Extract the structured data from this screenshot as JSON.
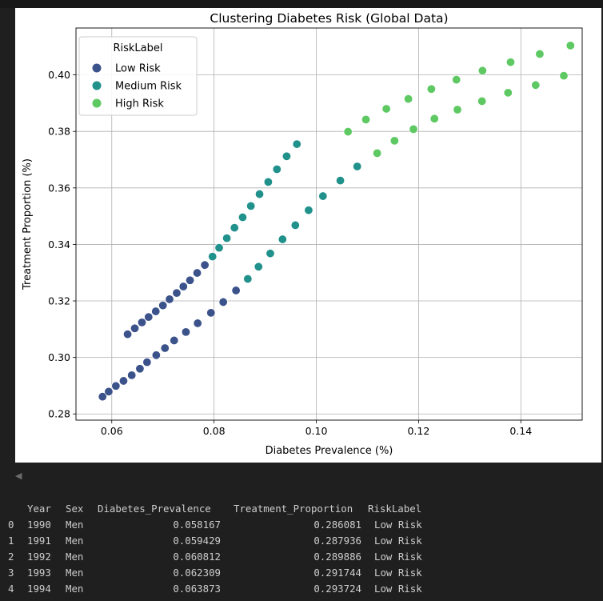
{
  "chart_data": {
    "type": "scatter",
    "title": "Clustering Diabetes Risk (Global Data)",
    "xlabel": "Diabetes Prevalence (%)",
    "ylabel": "Treatment Proportion (%)",
    "xlim": [
      0.053,
      0.152
    ],
    "ylim": [
      0.2778,
      0.4166
    ],
    "xticks": [
      0.06,
      0.08,
      0.1,
      0.12,
      0.14
    ],
    "xtick_labels": [
      "0.06",
      "0.08",
      "0.10",
      "0.12",
      "0.14"
    ],
    "yticks": [
      0.28,
      0.3,
      0.32,
      0.34,
      0.36,
      0.38,
      0.4
    ],
    "ytick_labels": [
      "0.28",
      "0.30",
      "0.32",
      "0.34",
      "0.36",
      "0.38",
      "0.40"
    ],
    "grid": true,
    "legend": {
      "title": "RiskLabel",
      "position": "top-left"
    },
    "series": [
      {
        "name": "Low Risk",
        "color": "#3b528b",
        "points": [
          [
            0.0582,
            0.2861
          ],
          [
            0.0594,
            0.2879
          ],
          [
            0.0608,
            0.2899
          ],
          [
            0.0623,
            0.2917
          ],
          [
            0.0639,
            0.2937
          ],
          [
            0.0655,
            0.296
          ],
          [
            0.0669,
            0.2983
          ],
          [
            0.0687,
            0.3008
          ],
          [
            0.0704,
            0.3033
          ],
          [
            0.0722,
            0.306
          ],
          [
            0.0745,
            0.309
          ],
          [
            0.0768,
            0.3121
          ],
          [
            0.0794,
            0.3158
          ],
          [
            0.0818,
            0.3196
          ],
          [
            0.0843,
            0.3237
          ],
          [
            0.0631,
            0.3082
          ],
          [
            0.0645,
            0.3103
          ],
          [
            0.0659,
            0.3124
          ],
          [
            0.0672,
            0.3143
          ],
          [
            0.0686,
            0.3163
          ],
          [
            0.07,
            0.3184
          ],
          [
            0.0713,
            0.3206
          ],
          [
            0.0727,
            0.3228
          ],
          [
            0.074,
            0.3251
          ],
          [
            0.0753,
            0.3273
          ],
          [
            0.0767,
            0.3299
          ],
          [
            0.0782,
            0.3327
          ]
        ]
      },
      {
        "name": "Medium Risk",
        "color": "#21918c",
        "points": [
          [
            0.0797,
            0.3357
          ],
          [
            0.081,
            0.3388
          ],
          [
            0.0825,
            0.3422
          ],
          [
            0.084,
            0.3459
          ],
          [
            0.0856,
            0.3496
          ],
          [
            0.0872,
            0.3536
          ],
          [
            0.0889,
            0.3578
          ],
          [
            0.0906,
            0.3621
          ],
          [
            0.0923,
            0.3666
          ],
          [
            0.0942,
            0.3712
          ],
          [
            0.0962,
            0.3755
          ],
          [
            0.0866,
            0.3278
          ],
          [
            0.0887,
            0.3321
          ],
          [
            0.091,
            0.3368
          ],
          [
            0.0934,
            0.3418
          ],
          [
            0.0959,
            0.3468
          ],
          [
            0.0985,
            0.3521
          ],
          [
            0.1013,
            0.3571
          ],
          [
            0.1047,
            0.3626
          ],
          [
            0.108,
            0.3676
          ]
        ]
      },
      {
        "name": "High Risk",
        "color": "#5ec962",
        "points": [
          [
            0.1062,
            0.3799
          ],
          [
            0.1097,
            0.3842
          ],
          [
            0.1137,
            0.388
          ],
          [
            0.118,
            0.3915
          ],
          [
            0.1225,
            0.395
          ],
          [
            0.1274,
            0.3983
          ],
          [
            0.1325,
            0.4015
          ],
          [
            0.138,
            0.4045
          ],
          [
            0.1437,
            0.4074
          ],
          [
            0.1497,
            0.4104
          ],
          [
            0.1119,
            0.3723
          ],
          [
            0.1153,
            0.3767
          ],
          [
            0.119,
            0.3808
          ],
          [
            0.1231,
            0.3845
          ],
          [
            0.1276,
            0.3877
          ],
          [
            0.1324,
            0.3907
          ],
          [
            0.1375,
            0.3937
          ],
          [
            0.1429,
            0.3964
          ],
          [
            0.1484,
            0.3997
          ]
        ]
      }
    ]
  },
  "dataframe": {
    "columns": [
      "Year",
      "Sex",
      "Diabetes_Prevalence",
      "Treatment_Proportion",
      "RiskLabel"
    ],
    "index": [
      "0",
      "1",
      "2",
      "3",
      "4"
    ],
    "rows": [
      [
        "1990",
        "Men",
        "0.058167",
        "0.286081",
        "Low Risk"
      ],
      [
        "1991",
        "Men",
        "0.059429",
        "0.287936",
        "Low Risk"
      ],
      [
        "1992",
        "Men",
        "0.060812",
        "0.289886",
        "Low Risk"
      ],
      [
        "1993",
        "Men",
        "0.062309",
        "0.291744",
        "Low Risk"
      ],
      [
        "1994",
        "Men",
        "0.063873",
        "0.293724",
        "Low Risk"
      ]
    ]
  }
}
